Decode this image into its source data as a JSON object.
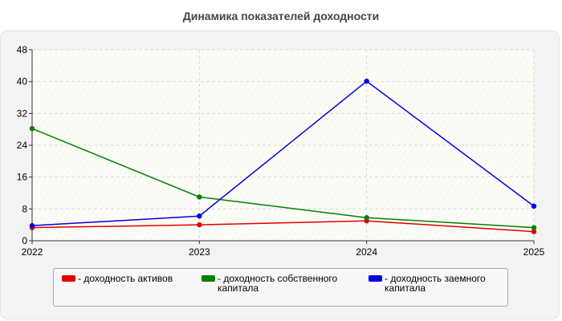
{
  "chart_data": {
    "type": "line",
    "title": "Динамика показателей доходности",
    "x": [
      "2022",
      "2023",
      "2024",
      "2025"
    ],
    "ylim": [
      0,
      48
    ],
    "yticks": [
      0,
      8,
      16,
      24,
      32,
      40,
      48
    ],
    "grid": true,
    "legend_position": "bottom",
    "series": [
      {
        "name": "- доходность активов",
        "color": "#e00000",
        "values": [
          3.3,
          4.0,
          5.0,
          2.3
        ]
      },
      {
        "name": "- доходность собственного\nкапитала",
        "color": "#008000",
        "values": [
          28.2,
          11.0,
          5.8,
          3.3
        ]
      },
      {
        "name": "- доходность заемного\nкапитала",
        "color": "#0000e0",
        "values": [
          3.8,
          6.2,
          40.1,
          8.7
        ]
      }
    ]
  }
}
